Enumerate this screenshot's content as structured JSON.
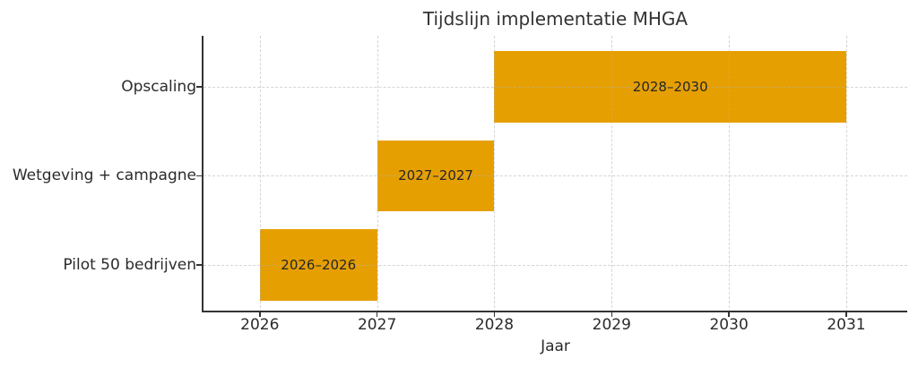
{
  "chart_data": {
    "type": "gantt",
    "title": "Tijdslijn implementatie MHGA",
    "xlabel": "Jaar",
    "ylabel": "",
    "x_ticks": [
      "2026",
      "2027",
      "2028",
      "2029",
      "2030",
      "2031"
    ],
    "x_tick_values": [
      2026,
      2027,
      2028,
      2029,
      2030,
      2031
    ],
    "xlim": [
      2025.52,
      2031.52
    ],
    "ylim": [
      -0.53,
      2.57
    ],
    "bar_height": 0.8,
    "grid": true,
    "grid_style": "dashed",
    "legend": false,
    "bar_color": "#E69F00",
    "tasks": [
      {
        "name": "Pilot 50 bedrijven",
        "bar_start": 2026,
        "bar_end": 2027,
        "label": "2026–2026"
      },
      {
        "name": "Wetgeving + campagne",
        "bar_start": 2027,
        "bar_end": 2028,
        "label": "2027–2027"
      },
      {
        "name": "Opscaling",
        "bar_start": 2028,
        "bar_end": 2031,
        "label": "2028–2030"
      }
    ]
  }
}
